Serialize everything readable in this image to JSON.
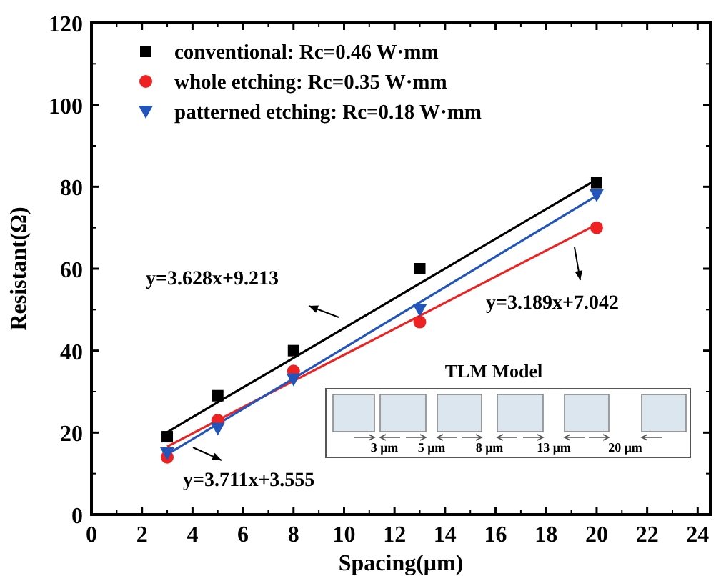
{
  "chart_data": {
    "type": "scatter",
    "xlabel": "Spacing(μm)",
    "ylabel": "Resistant(Ω)",
    "xlim": [
      0,
      24.5
    ],
    "ylim": [
      0,
      120
    ],
    "xticks": [
      0,
      2,
      4,
      6,
      8,
      10,
      12,
      14,
      16,
      18,
      20,
      22,
      24
    ],
    "yticks": [
      0,
      20,
      40,
      60,
      80,
      100,
      120
    ],
    "grid": false,
    "legend": "top left",
    "x": [
      3,
      5,
      8,
      13,
      20
    ],
    "series": [
      {
        "name": "conventional: Rc=0.46 W·mm",
        "color": "#000000",
        "marker": "square",
        "values": [
          19,
          29,
          40,
          60,
          81
        ]
      },
      {
        "name": "whole etching: Rc=0.35 W·mm",
        "color": "#ee2222",
        "marker": "circle",
        "values": [
          14,
          23,
          35,
          47,
          70
        ]
      },
      {
        "name": "patterned etching: Rc=0.18 W·mm",
        "color": "#2255bb",
        "marker": "triangle",
        "values": [
          15,
          21,
          33,
          50,
          78
        ]
      },
      {
        "type": "line",
        "color": "#000000",
        "marker": "none",
        "values": [
          20.1,
          27.4,
          38.2,
          56.4,
          81.8
        ]
      },
      {
        "type": "line",
        "color": "#ee2222",
        "marker": "none",
        "values": [
          16.6,
          23.0,
          32.6,
          48.5,
          70.8
        ]
      },
      {
        "type": "line",
        "color": "#2255bb",
        "marker": "none",
        "values": [
          14.7,
          22.1,
          33.2,
          51.8,
          77.8
        ]
      }
    ],
    "annotations": [
      "y=3.628x+9.213",
      "y=3.189x+7.042",
      "y=3.711x+3.555",
      "TLM Model",
      "3 μm",
      "5 μm",
      "8 μm",
      "13 μm",
      "20 μm"
    ]
  }
}
